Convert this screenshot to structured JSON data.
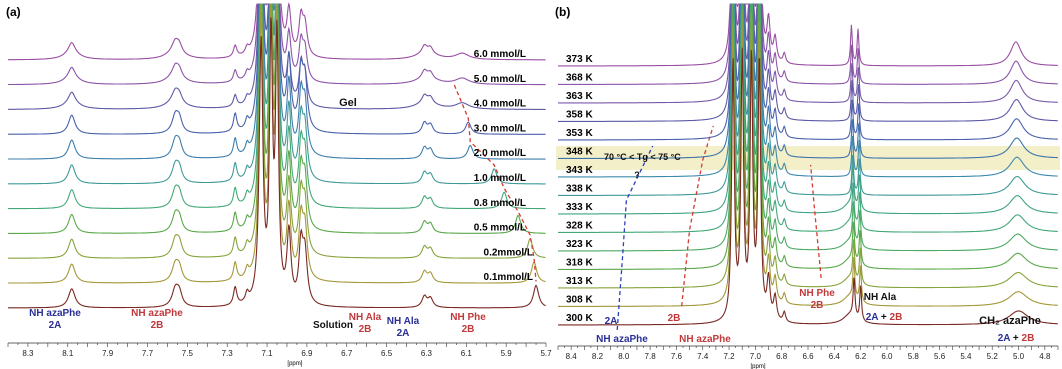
{
  "colors": {
    "spectra_left": [
      "#9a4fa3",
      "#8d55a8",
      "#5e5aa8",
      "#4a62ad",
      "#3d7fae",
      "#3f9a98",
      "#43a878",
      "#5aa84a",
      "#87a43c",
      "#a4983a",
      "#7a2a22"
    ],
    "spectra_right": [
      "#9a4fa3",
      "#8d55a8",
      "#7b5aaa",
      "#5e5aa8",
      "#4a62ad",
      "#3e75ad",
      "#3d8aae",
      "#3f9a98",
      "#3fa385",
      "#43a878",
      "#4ea965",
      "#5aa84a",
      "#87a43c",
      "#a4983a",
      "#7a2a22"
    ],
    "label_blue": "#2a2f96",
    "label_red": "#c0393b",
    "label_black": "#111111",
    "dash_red": "#d63b2f",
    "dash_blue": "#2b3fbf",
    "tg_band": "#f3efc8"
  },
  "chart_data": [
    {
      "type": "line",
      "panel": "(a)",
      "xlabel": "[ppm]",
      "xlim": [
        8.4,
        5.7
      ],
      "ticks": [
        "8.3",
        "8.1",
        "7.9",
        "7.7",
        "7.5",
        "7.3",
        "7.1",
        "6.9",
        "6.7",
        "6.5",
        "6.3",
        "6.1",
        "5.9",
        "5.7"
      ],
      "tick_values": [
        8.3,
        8.1,
        7.9,
        7.7,
        7.5,
        7.3,
        7.1,
        6.9,
        6.7,
        6.5,
        6.3,
        6.1,
        5.9,
        5.7
      ],
      "series": [
        {
          "name": "6.0 mmol/L",
          "nh_phe": null
        },
        {
          "name": "5.0 mmol/L",
          "nh_phe": null
        },
        {
          "name": "4.0 mmol/L",
          "nh_phe": null
        },
        {
          "name": "3.0 mmol/L",
          "nh_phe": 6.09
        },
        {
          "name": "2.0 mmol/L",
          "nh_phe": 6.08
        },
        {
          "name": "1.0 mmol/L",
          "nh_phe": 5.96
        },
        {
          "name": "0.8 mmol/L",
          "nh_phe": 5.91
        },
        {
          "name": "0.5 mmol/L",
          "nh_phe": 5.84
        },
        {
          "name": "0.2mmol/L",
          "nh_phe": 5.78
        },
        {
          "name": "0.1mmol/L",
          "nh_phe": 5.76
        },
        {
          "name": "",
          "nh_phe": 5.75
        }
      ],
      "annotations": {
        "gel": "Gel",
        "solution": "Solution",
        "nh_azaphe_2a": [
          "NH azaPhe",
          "2A"
        ],
        "nh_azaphe_2b": [
          "NH azaPhe",
          "2B"
        ],
        "nh_ala_2b": [
          "NH Ala",
          "2B"
        ],
        "nh_ala_2a": [
          "NH Ala",
          "2A"
        ],
        "nh_phe_2b": [
          "NH Phe",
          "2B"
        ]
      }
    },
    {
      "type": "line",
      "panel": "(b)",
      "xlabel": "[ppm]",
      "xlim": [
        8.5,
        4.7
      ],
      "ticks": [
        "8.4",
        "8.2",
        "8.0",
        "7.8",
        "7.6",
        "7.4",
        "7.2",
        "7.0",
        "6.8",
        "6.6",
        "6.4",
        "6.2",
        "6.0",
        "5.8",
        "5.6",
        "5.4",
        "5.2",
        "5.0",
        "4.8"
      ],
      "tick_values": [
        8.4,
        8.2,
        8.0,
        7.8,
        7.6,
        7.4,
        7.2,
        7.0,
        6.8,
        6.6,
        6.4,
        6.2,
        6.0,
        5.8,
        5.6,
        5.4,
        5.2,
        5.0,
        4.8
      ],
      "series": [
        {
          "name": "373 K"
        },
        {
          "name": "368 K"
        },
        {
          "name": "363 K"
        },
        {
          "name": "358 K"
        },
        {
          "name": "353 K"
        },
        {
          "name": "348 K"
        },
        {
          "name": "343 K"
        },
        {
          "name": "338 K"
        },
        {
          "name": "333 K"
        },
        {
          "name": "328 K"
        },
        {
          "name": "323 K"
        },
        {
          "name": "318 K"
        },
        {
          "name": "313 K"
        },
        {
          "name": "308 K"
        },
        {
          "name": "300 K"
        }
      ],
      "annotations": {
        "tg": "70 °C < Tg < 75 °C",
        "question": "?",
        "two_a": "2A",
        "two_b": "2B",
        "nh_azaphe_blue": "NH azaPhe",
        "nh_azaphe_red": "NH azaPhe",
        "nh_phe": [
          "NH Phe",
          "2B"
        ],
        "nh_ala": "NH Ala",
        "nh_ala_sub": [
          "2A",
          " + ",
          "2B"
        ],
        "ch2": "CH₂ azaPhe",
        "ch2_sub": [
          "2A",
          " + ",
          "2B"
        ]
      }
    }
  ]
}
